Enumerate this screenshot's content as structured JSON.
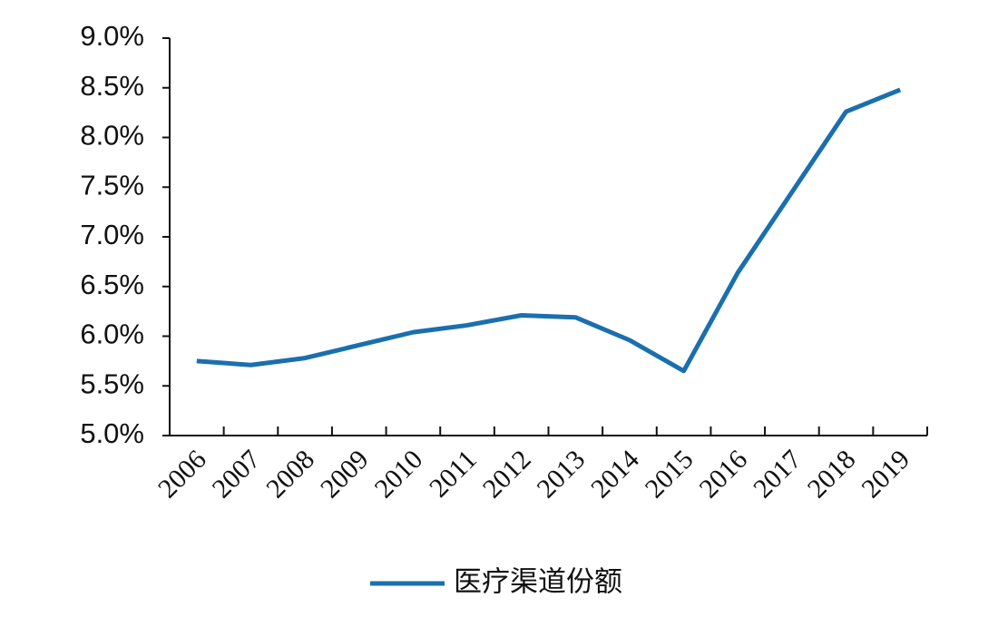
{
  "chart_data": {
    "type": "line",
    "categories": [
      "2006",
      "2007",
      "2008",
      "2009",
      "2010",
      "2011",
      "2012",
      "2013",
      "2014",
      "2015",
      "2016",
      "2017",
      "2018",
      "2019"
    ],
    "series": [
      {
        "name": "医疗渠道份额",
        "color": "#1a6fae",
        "values": [
          5.75,
          5.71,
          5.78,
          5.91,
          6.04,
          6.11,
          6.21,
          6.19,
          5.96,
          5.65,
          6.64,
          7.45,
          8.26,
          8.48
        ]
      }
    ],
    "ylim": [
      5,
      9
    ],
    "yticks": [
      {
        "value": 5,
        "label": "5.0%"
      },
      {
        "value": 5.5,
        "label": "5.5%"
      },
      {
        "value": 6,
        "label": "6.0%"
      },
      {
        "value": 6.5,
        "label": "6.5%"
      },
      {
        "value": 7,
        "label": "7.0%"
      },
      {
        "value": 7.5,
        "label": "7.5%"
      },
      {
        "value": 8,
        "label": "8.0%"
      },
      {
        "value": 8.5,
        "label": "8.5%"
      },
      {
        "value": 9,
        "label": "9.0%"
      }
    ],
    "legend": "bottom"
  }
}
